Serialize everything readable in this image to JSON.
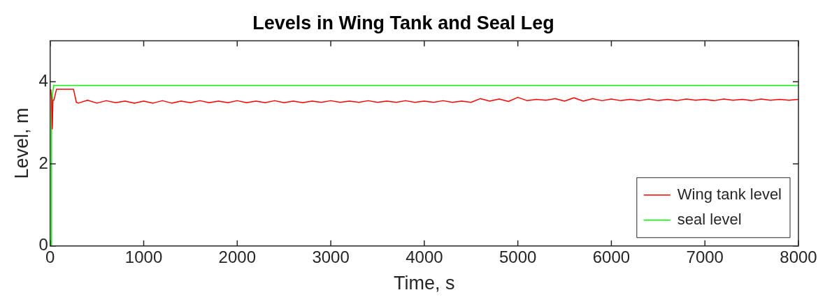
{
  "chart_data": {
    "type": "line",
    "title": "Levels in Wing Tank and Seal Leg",
    "xlabel": "Time, s",
    "ylabel": "Level, m",
    "xlim": [
      0,
      8000
    ],
    "xticks": [
      0,
      1000,
      2000,
      3000,
      4000,
      5000,
      6000,
      7000,
      8000
    ],
    "ylim": [
      0,
      5
    ],
    "yticks": [
      0,
      2,
      4
    ],
    "grid": false,
    "legend": "bottom right",
    "series": [
      {
        "name": "Wing tank level",
        "color": "#ff0000",
        "x": [
          0,
          8,
          15,
          23,
          30,
          40,
          68,
          250,
          280,
          300,
          400,
          500,
          600,
          700,
          800,
          900,
          1000,
          1100,
          1200,
          1300,
          1400,
          1500,
          1600,
          1700,
          1800,
          1900,
          2000,
          2100,
          2200,
          2300,
          2400,
          2500,
          2600,
          2700,
          2800,
          2900,
          3000,
          3100,
          3200,
          3300,
          3400,
          3500,
          3600,
          3700,
          3800,
          3900,
          4000,
          4100,
          4200,
          4300,
          4400,
          4500,
          4600,
          4700,
          4800,
          4900,
          5000,
          5100,
          5200,
          5300,
          5400,
          5500,
          5600,
          5700,
          5800,
          5900,
          6000,
          6100,
          6200,
          6300,
          6400,
          6500,
          6600,
          6700,
          6800,
          6900,
          7000,
          7100,
          7200,
          7300,
          7400,
          7500,
          7600,
          7700,
          7800,
          7900,
          8000
        ],
        "values": [
          3.8,
          3.8,
          3.6,
          2.85,
          3.55,
          3.55,
          3.82,
          3.82,
          3.5,
          3.48,
          3.55,
          3.48,
          3.54,
          3.49,
          3.53,
          3.48,
          3.53,
          3.48,
          3.54,
          3.48,
          3.53,
          3.49,
          3.54,
          3.49,
          3.53,
          3.49,
          3.54,
          3.49,
          3.53,
          3.49,
          3.54,
          3.49,
          3.53,
          3.49,
          3.53,
          3.5,
          3.54,
          3.5,
          3.53,
          3.5,
          3.54,
          3.5,
          3.53,
          3.5,
          3.54,
          3.5,
          3.53,
          3.5,
          3.54,
          3.5,
          3.53,
          3.5,
          3.59,
          3.53,
          3.58,
          3.52,
          3.62,
          3.54,
          3.57,
          3.55,
          3.59,
          3.53,
          3.61,
          3.53,
          3.59,
          3.54,
          3.58,
          3.54,
          3.57,
          3.54,
          3.58,
          3.54,
          3.57,
          3.54,
          3.58,
          3.55,
          3.57,
          3.54,
          3.58,
          3.55,
          3.57,
          3.54,
          3.58,
          3.55,
          3.57,
          3.55,
          3.57
        ]
      },
      {
        "name": "seal level",
        "color": "#00ff00",
        "x": [
          0,
          10,
          15,
          20,
          25,
          38,
          8000
        ],
        "values": [
          0,
          0,
          3.6,
          3.0,
          3.7,
          3.91,
          3.91
        ]
      }
    ]
  }
}
